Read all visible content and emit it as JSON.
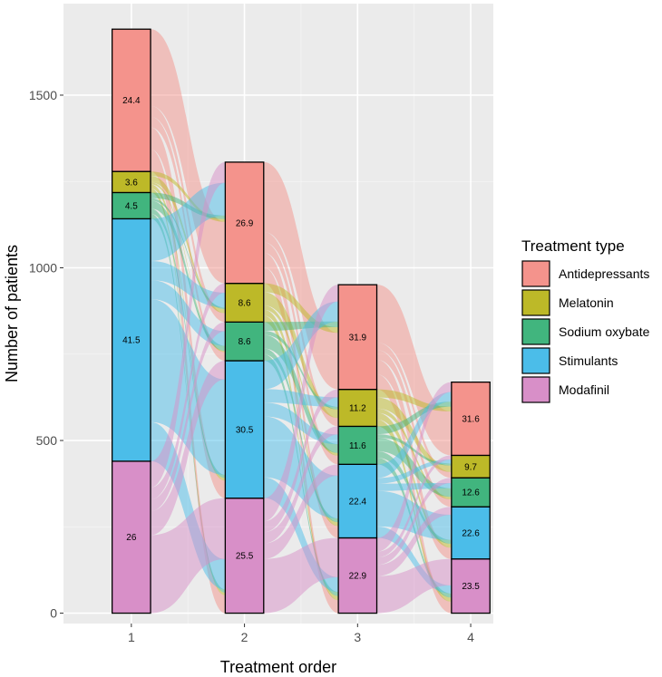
{
  "chart_data": {
    "type": "alluvial",
    "xlabel": "Treatment order",
    "ylabel": "Number of patients",
    "categories": [
      "1",
      "2",
      "3",
      "4"
    ],
    "y_ticks": [
      0,
      500,
      1000,
      1500
    ],
    "ylim": [
      -30,
      1765
    ],
    "legend": {
      "title": "Treatment type",
      "position": "right",
      "items": [
        "Antidepressants",
        "Melatonin",
        "Sodium oxybate",
        "Stimulants",
        "Modafinil"
      ]
    },
    "colors": {
      "Antidepressants": "#f4938c",
      "Melatonin": "#bdb928",
      "Sodium oxybate": "#41b57e",
      "Stimulants": "#4bbde9",
      "Modafinil": "#d88fc8"
    },
    "stack_order_bottom_to_top": [
      "Modafinil",
      "Stimulants",
      "Sodium oxybate",
      "Melatonin",
      "Antidepressants"
    ],
    "stages": [
      {
        "order": "1",
        "segments": [
          {
            "type": "Modafinil",
            "count": 440,
            "label": "26"
          },
          {
            "type": "Stimulants",
            "count": 702,
            "label": "41.5"
          },
          {
            "type": "Sodium oxybate",
            "count": 76,
            "label": "4.5"
          },
          {
            "type": "Melatonin",
            "count": 61,
            "label": "3.6"
          },
          {
            "type": "Antidepressants",
            "count": 412,
            "label": "24.4"
          }
        ]
      },
      {
        "order": "2",
        "segments": [
          {
            "type": "Modafinil",
            "count": 333,
            "label": "25.5"
          },
          {
            "type": "Stimulants",
            "count": 398,
            "label": "30.5"
          },
          {
            "type": "Sodium oxybate",
            "count": 112,
            "label": "8.6"
          },
          {
            "type": "Melatonin",
            "count": 112,
            "label": "8.6"
          },
          {
            "type": "Antidepressants",
            "count": 351,
            "label": "26.9"
          }
        ]
      },
      {
        "order": "3",
        "segments": [
          {
            "type": "Modafinil",
            "count": 218,
            "label": "22.9"
          },
          {
            "type": "Stimulants",
            "count": 213,
            "label": "22.4"
          },
          {
            "type": "Sodium oxybate",
            "count": 110,
            "label": "11.6"
          },
          {
            "type": "Melatonin",
            "count": 107,
            "label": "11.2"
          },
          {
            "type": "Antidepressants",
            "count": 303,
            "label": "31.9"
          }
        ]
      },
      {
        "order": "4",
        "segments": [
          {
            "type": "Modafinil",
            "count": 157,
            "label": "23.5"
          },
          {
            "type": "Stimulants",
            "count": 151,
            "label": "22.6"
          },
          {
            "type": "Sodium oxybate",
            "count": 84,
            "label": "12.6"
          },
          {
            "type": "Melatonin",
            "count": 65,
            "label": "9.7"
          },
          {
            "type": "Antidepressants",
            "count": 212,
            "label": "31.6"
          }
        ]
      }
    ]
  }
}
